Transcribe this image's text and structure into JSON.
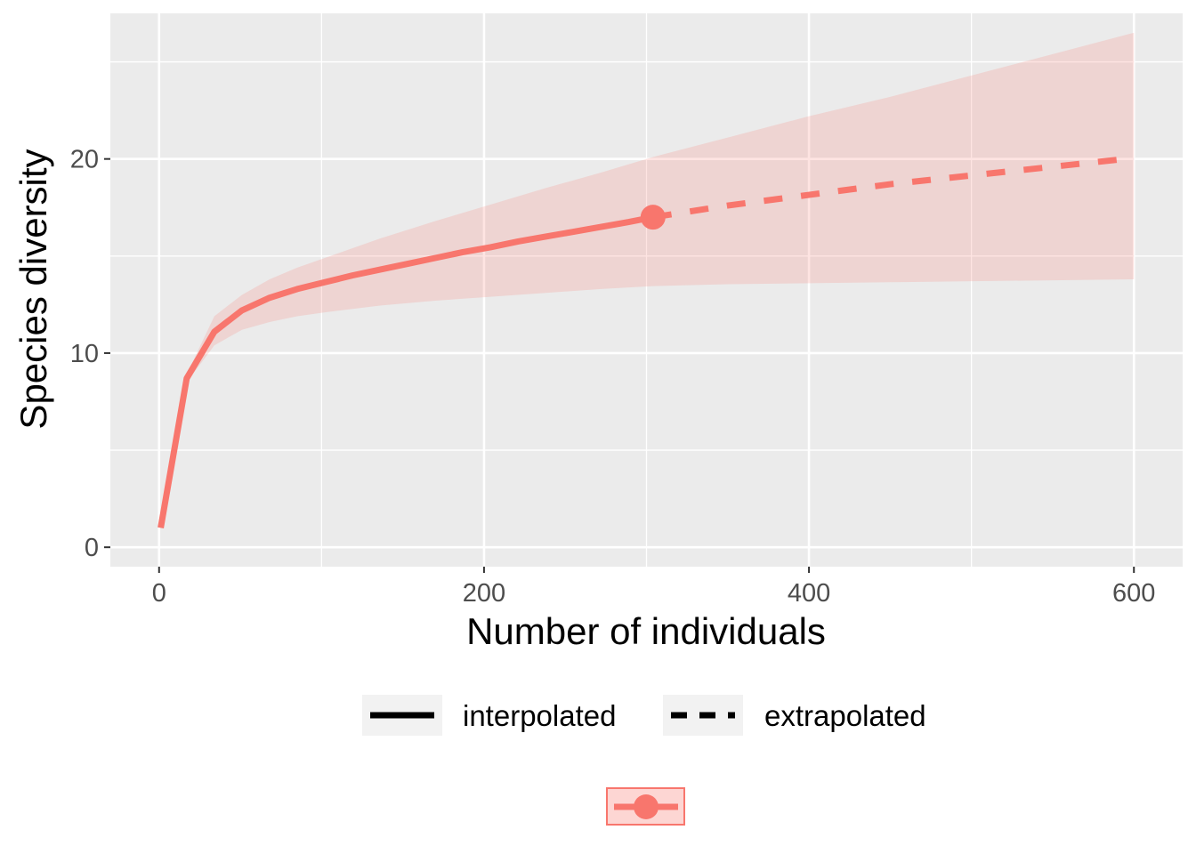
{
  "chart_data": {
    "type": "line",
    "title": "",
    "xlabel": "Number of individuals",
    "ylabel": "Species diversity",
    "xlim": [
      -30,
      630
    ],
    "ylim": [
      -1,
      27.5
    ],
    "x_ticks": [
      0,
      200,
      400,
      600
    ],
    "x_tick_labels": [
      "0",
      "200",
      "400",
      "600"
    ],
    "y_ticks": [
      0,
      10,
      20
    ],
    "y_tick_labels": [
      "0",
      "10",
      "20"
    ],
    "grid": true,
    "legend_position": "bottom",
    "series": [
      {
        "method": "interpolated",
        "line_style": "solid",
        "x": [
          1,
          17,
          34,
          51,
          68,
          85,
          102,
          119,
          136,
          153,
          170,
          187,
          204,
          221,
          238,
          255,
          272,
          289,
          304
        ],
        "y": [
          1.0,
          8.7,
          11.1,
          12.2,
          12.85,
          13.3,
          13.65,
          14.0,
          14.3,
          14.6,
          14.9,
          15.2,
          15.45,
          15.75,
          16.0,
          16.25,
          16.5,
          16.75,
          17.0
        ]
      },
      {
        "method": "extrapolated",
        "line_style": "dashed",
        "x": [
          304,
          350,
          400,
          450,
          500,
          550,
          600
        ],
        "y": [
          17.0,
          17.6,
          18.15,
          18.7,
          19.15,
          19.6,
          20.05
        ]
      }
    ],
    "observed_point": {
      "x": 304,
      "y": 17.0
    },
    "confidence_band": {
      "x": [
        17,
        34,
        51,
        68,
        85,
        102,
        136,
        170,
        204,
        238,
        272,
        304,
        350,
        400,
        450,
        500,
        550,
        600
      ],
      "lower": [
        8.5,
        10.4,
        11.2,
        11.6,
        11.9,
        12.1,
        12.45,
        12.7,
        12.9,
        13.1,
        13.3,
        13.45,
        13.55,
        13.6,
        13.65,
        13.7,
        13.75,
        13.8
      ],
      "upper": [
        8.9,
        11.9,
        13.0,
        13.8,
        14.4,
        14.9,
        15.9,
        16.8,
        17.65,
        18.5,
        19.3,
        20.1,
        21.1,
        22.2,
        23.2,
        24.3,
        25.4,
        26.5
      ]
    },
    "colors": {
      "series": "#F8766D",
      "band": "#F8766D",
      "panel_background": "#EBEBEB",
      "grid": "#FFFFFF",
      "legend_key_background": "#F2F2F2",
      "legend_line": "#000000"
    },
    "legend": {
      "entries": [
        {
          "label": "interpolated",
          "line_style": "solid"
        },
        {
          "label": "extrapolated",
          "line_style": "dashed"
        }
      ]
    }
  }
}
